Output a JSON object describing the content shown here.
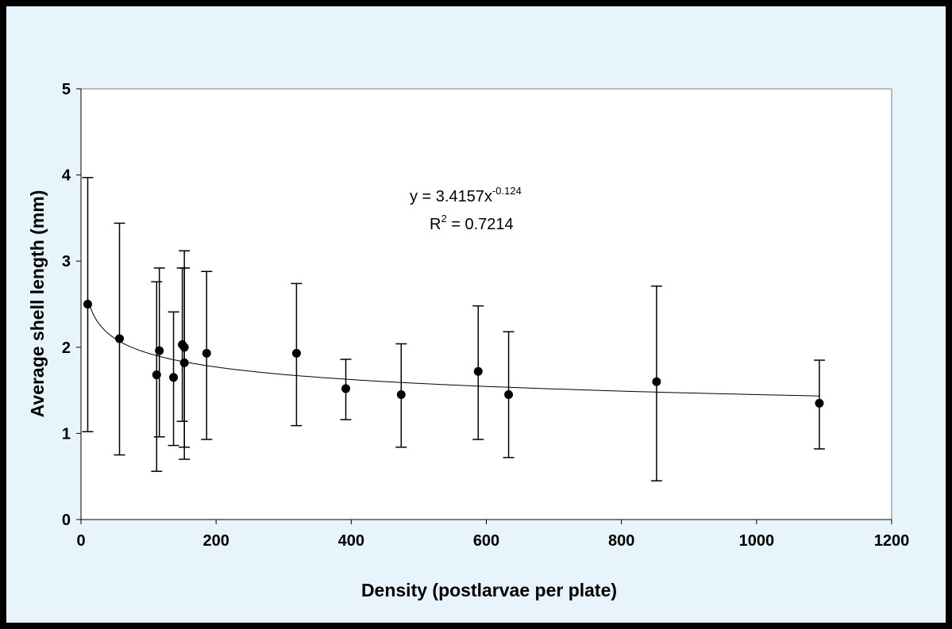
{
  "chart_data": {
    "type": "scatter",
    "xlabel": "Density (postlarvae per plate)",
    "ylabel": "Average shell length (mm)",
    "xlim": [
      0,
      1200
    ],
    "ylim": [
      0,
      5
    ],
    "x_ticks": [
      0,
      200,
      400,
      600,
      800,
      1000,
      1200
    ],
    "y_ticks": [
      0,
      1,
      2,
      3,
      4,
      5
    ],
    "grid": false,
    "points": [
      {
        "x": 10,
        "y": 2.5,
        "err_low": 1.02,
        "err_high": 3.97
      },
      {
        "x": 57,
        "y": 2.1,
        "err_low": 0.75,
        "err_high": 3.44
      },
      {
        "x": 112,
        "y": 1.68,
        "err_low": 0.56,
        "err_high": 2.76
      },
      {
        "x": 116,
        "y": 1.96,
        "err_low": 0.96,
        "err_high": 2.92
      },
      {
        "x": 137,
        "y": 1.65,
        "err_low": 0.86,
        "err_high": 2.41
      },
      {
        "x": 150,
        "y": 2.03,
        "err_low": 1.14,
        "err_high": 2.92
      },
      {
        "x": 153,
        "y": 2.0,
        "err_low": 0.84,
        "err_high": 3.12
      },
      {
        "x": 153,
        "y": 1.82,
        "err_low": 0.7,
        "err_high": 2.92
      },
      {
        "x": 186,
        "y": 1.93,
        "err_low": 0.93,
        "err_high": 2.88
      },
      {
        "x": 319,
        "y": 1.93,
        "err_low": 1.09,
        "err_high": 2.74
      },
      {
        "x": 392,
        "y": 1.52,
        "err_low": 1.16,
        "err_high": 1.86
      },
      {
        "x": 474,
        "y": 1.45,
        "err_low": 0.84,
        "err_high": 2.04
      },
      {
        "x": 588,
        "y": 1.72,
        "err_low": 0.93,
        "err_high": 2.48
      },
      {
        "x": 633,
        "y": 1.45,
        "err_low": 0.72,
        "err_high": 2.18
      },
      {
        "x": 852,
        "y": 1.6,
        "err_low": 0.45,
        "err_high": 2.71
      },
      {
        "x": 1093,
        "y": 1.35,
        "err_low": 0.82,
        "err_high": 1.85
      }
    ],
    "trendline": {
      "type": "power",
      "a": 3.4157,
      "b": -0.124,
      "x_range": [
        10,
        1093
      ]
    },
    "annotations": {
      "equation_main": "y = 3.4157x",
      "equation_exp": "-0.124",
      "r2_label": "R",
      "r2_exp": "2",
      "r2_value": " = 0.7214"
    }
  }
}
